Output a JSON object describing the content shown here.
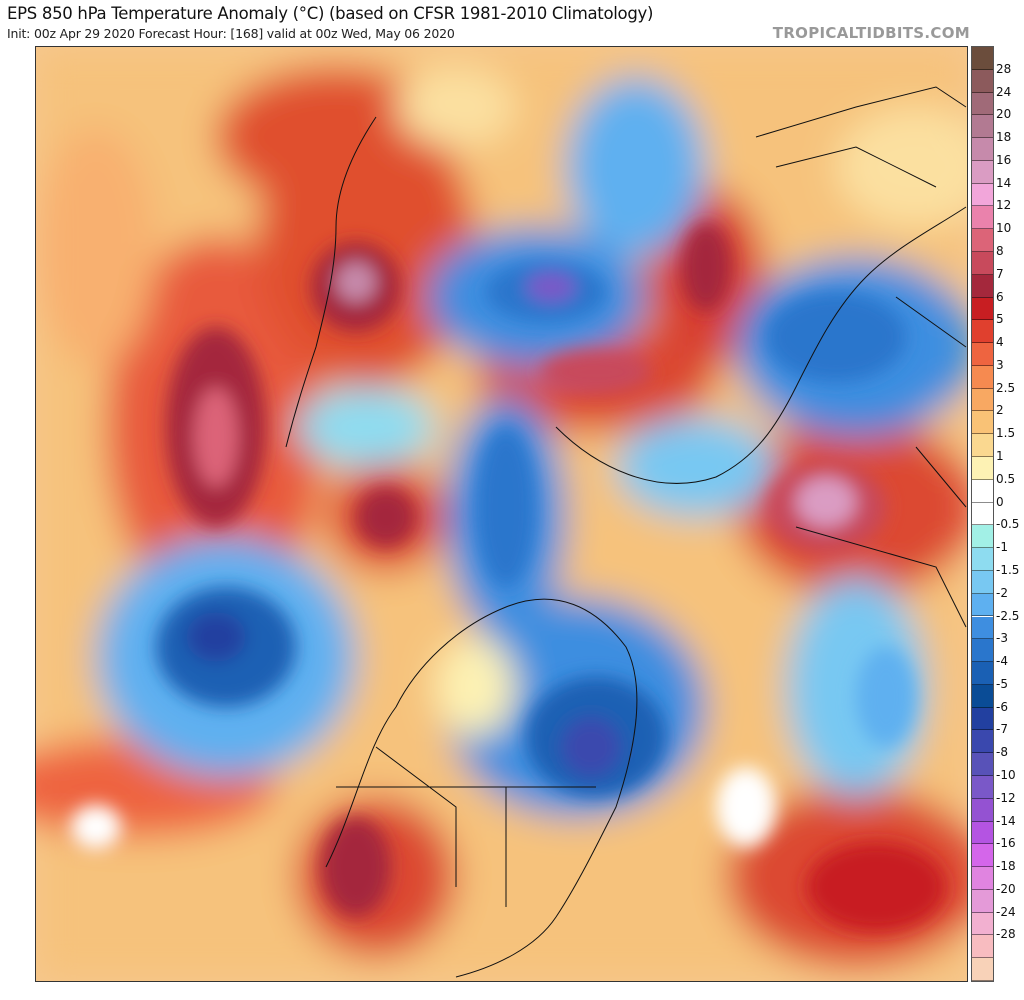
{
  "header": {
    "title": "EPS 850 hPa Temperature Anomaly (°C) (based on CFSR 1981-2010 Climatology)",
    "subtitle": "Init: 00z Apr 29 2020   Forecast Hour: [168]   valid at 00z Wed, May 06 2020",
    "brand": "TROPICALTIDBITS.COM"
  },
  "map": {
    "projection": "polar stereographic, Northern Hemisphere",
    "variable": "850 hPa temperature anomaly"
  },
  "colorbar": {
    "unit": "°C",
    "labels": [
      "28",
      "24",
      "20",
      "18",
      "16",
      "14",
      "12",
      "10",
      "8",
      "7",
      "6",
      "5",
      "4",
      "3",
      "2.5",
      "2",
      "1.5",
      "1",
      "0.5",
      "0",
      "-0.5",
      "-1",
      "-1.5",
      "-2",
      "-2.5",
      "-3",
      "-4",
      "-5",
      "-6",
      "-7",
      "-8",
      "-10",
      "-12",
      "-14",
      "-16",
      "-18",
      "-20",
      "-24",
      "-28"
    ],
    "colors": [
      "#6b4d3c",
      "#8c5a5c",
      "#a06a78",
      "#b27a92",
      "#c68aab",
      "#da9cc3",
      "#f2a6da",
      "#ea82ac",
      "#dc6478",
      "#c84a5c",
      "#a4283c",
      "#c81e22",
      "#e0402e",
      "#ee6440",
      "#f68a50",
      "#f8a862",
      "#f9c276",
      "#fad890",
      "#fdf2b4",
      "#ffffff",
      "#ffffff",
      "#a2f0e6",
      "#8edcf0",
      "#78c8f2",
      "#5eb0f0",
      "#3e8ee0",
      "#2a76cc",
      "#1a60b4",
      "#0a4c96",
      "#2240a0",
      "#3a48ae",
      "#5852b8",
      "#7a58c8",
      "#9452d2",
      "#b454e2",
      "#d466ea",
      "#e084e0",
      "#e49ad8",
      "#f2b0d0",
      "#f8bcc0",
      "#f8d2b8"
    ]
  }
}
